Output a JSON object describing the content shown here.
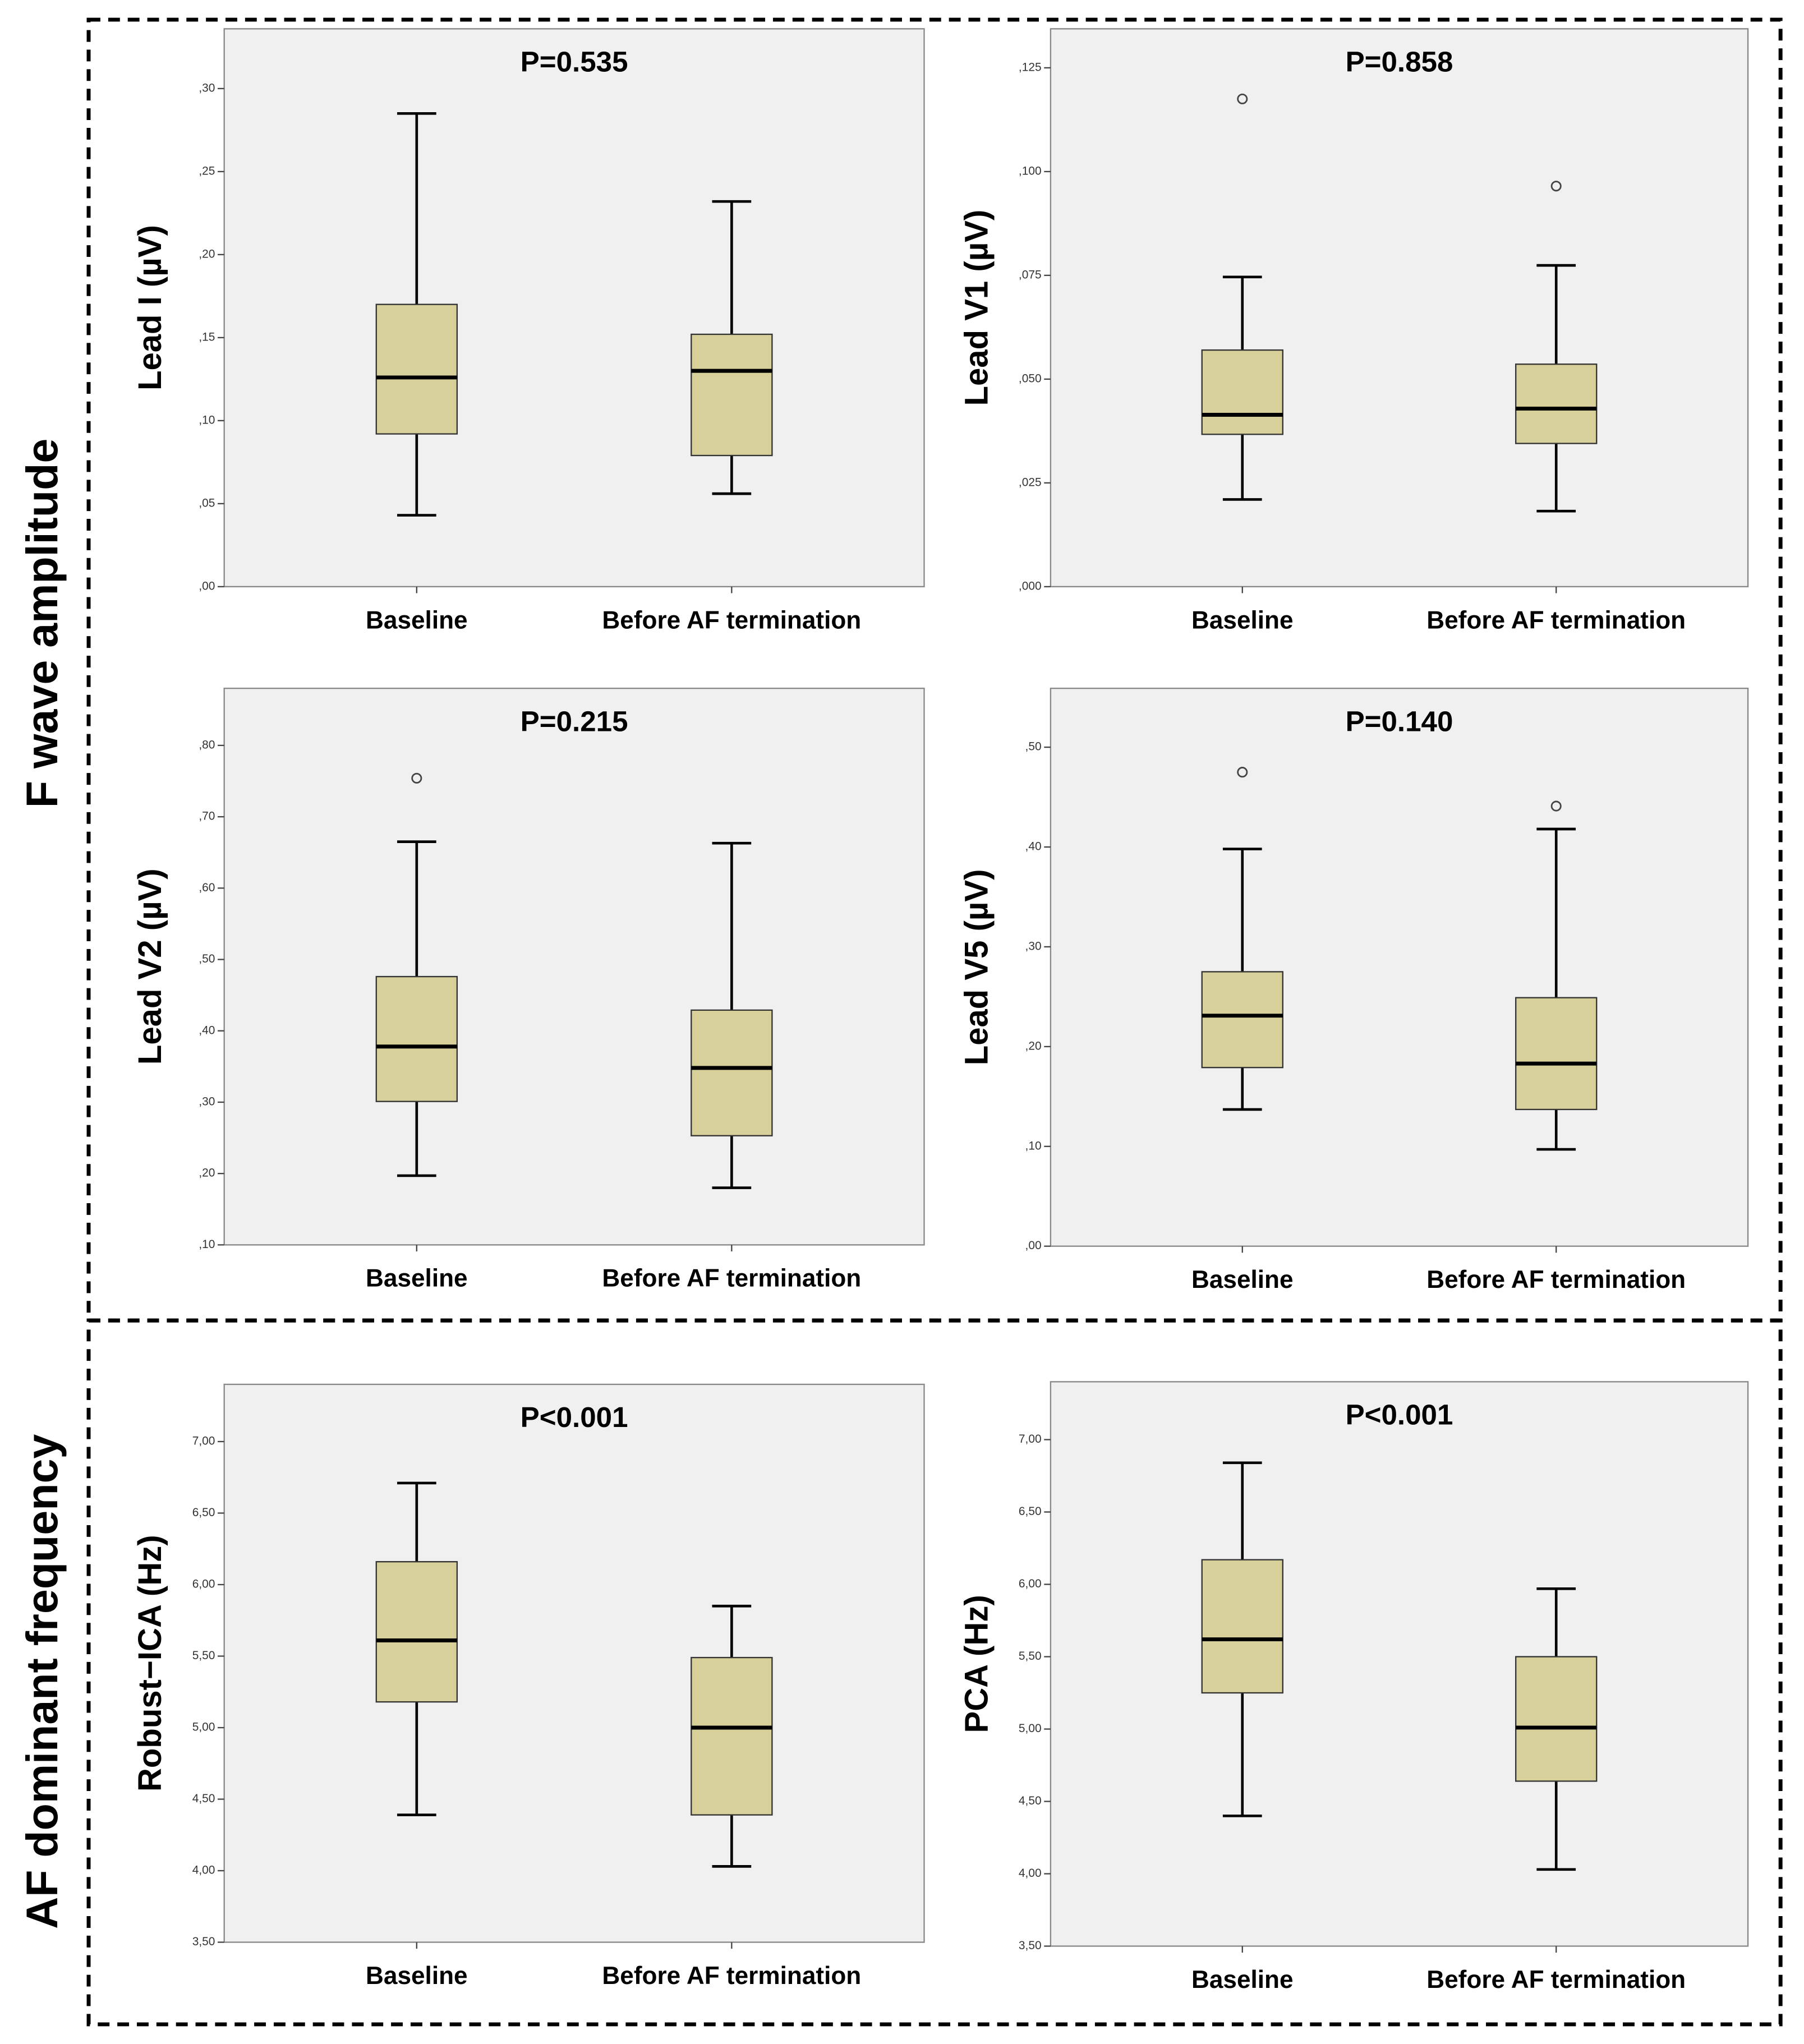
{
  "groups": [
    "F wave amplitude",
    "AF dominant frequency"
  ],
  "chart_data": [
    {
      "type": "box",
      "title": "P=0.535",
      "ylabel": "Lead I (µV)",
      "categories": [
        "Baseline",
        "Before AF termination"
      ],
      "color": "#d8d09a",
      "ylim": [
        0,
        0.336
      ],
      "yticks": [
        {
          "value": 0,
          "label": ",00"
        },
        {
          "value": 0.05,
          "label": ",05"
        },
        {
          "value": 0.1,
          "label": ",10"
        },
        {
          "value": 0.15,
          "label": ",15"
        },
        {
          "value": 0.2,
          "label": ",20"
        },
        {
          "value": 0.25,
          "label": ",25"
        },
        {
          "value": 0.3,
          "label": ",30"
        }
      ],
      "boxes": [
        {
          "min": 0.043,
          "q1": 0.092,
          "median": 0.126,
          "q3": 0.17,
          "max": 0.285,
          "outliers": []
        },
        {
          "min": 0.056,
          "q1": 0.079,
          "median": 0.13,
          "q3": 0.152,
          "max": 0.232,
          "outliers": []
        }
      ]
    },
    {
      "type": "box",
      "title": "P=0.858",
      "ylabel": "Lead V1 (µV)",
      "categories": [
        "Baseline",
        "Before AF termination"
      ],
      "color": "#d8d09a",
      "ylim": [
        0,
        0.1344
      ],
      "yticks": [
        {
          "value": 0,
          "label": ",000"
        },
        {
          "value": 0.025,
          "label": ",025"
        },
        {
          "value": 0.05,
          "label": ",050"
        },
        {
          "value": 0.075,
          "label": ",075"
        },
        {
          "value": 0.1,
          "label": ",100"
        },
        {
          "value": 0.125,
          "label": ",125"
        }
      ],
      "boxes": [
        {
          "min": 0.021,
          "q1": 0.0367,
          "median": 0.0414,
          "q3": 0.057,
          "max": 0.0746,
          "outliers": [
            0.1175
          ]
        },
        {
          "min": 0.0182,
          "q1": 0.0345,
          "median": 0.0429,
          "q3": 0.0536,
          "max": 0.0774,
          "outliers": [
            0.0965
          ]
        }
      ]
    },
    {
      "type": "box",
      "title": "P=0.215",
      "ylabel": "Lead V2 (µV)",
      "categories": [
        "Baseline",
        "Before AF termination"
      ],
      "color": "#d8d09a",
      "ylim": [
        0.1,
        0.88
      ],
      "yticks": [
        {
          "value": 0.1,
          "label": ",10"
        },
        {
          "value": 0.2,
          "label": ",20"
        },
        {
          "value": 0.3,
          "label": ",30"
        },
        {
          "value": 0.4,
          "label": ",40"
        },
        {
          "value": 0.5,
          "label": ",50"
        },
        {
          "value": 0.6,
          "label": ",60"
        },
        {
          "value": 0.7,
          "label": ",70"
        },
        {
          "value": 0.8,
          "label": ",80"
        }
      ],
      "boxes": [
        {
          "min": 0.197,
          "q1": 0.301,
          "median": 0.378,
          "q3": 0.476,
          "max": 0.665,
          "outliers": [
            0.754
          ]
        },
        {
          "min": 0.18,
          "q1": 0.253,
          "median": 0.348,
          "q3": 0.429,
          "max": 0.663,
          "outliers": []
        }
      ]
    },
    {
      "type": "box",
      "title": "P=0.140",
      "ylabel": "Lead V5 (µV)",
      "categories": [
        "Baseline",
        "Before AF termination"
      ],
      "color": "#d8d09a",
      "ylim": [
        0,
        0.559
      ],
      "yticks": [
        {
          "value": 0,
          "label": ",00"
        },
        {
          "value": 0.1,
          "label": ",10"
        },
        {
          "value": 0.2,
          "label": ",20"
        },
        {
          "value": 0.3,
          "label": ",30"
        },
        {
          "value": 0.4,
          "label": ",40"
        },
        {
          "value": 0.5,
          "label": ",50"
        }
      ],
      "boxes": [
        {
          "min": 0.137,
          "q1": 0.179,
          "median": 0.231,
          "q3": 0.275,
          "max": 0.398,
          "outliers": [
            0.475
          ]
        },
        {
          "min": 0.097,
          "q1": 0.137,
          "median": 0.183,
          "q3": 0.249,
          "max": 0.418,
          "outliers": [
            0.441
          ]
        }
      ]
    },
    {
      "type": "box",
      "title": "P<0.001",
      "ylabel": "Robust−ICA (Hz)",
      "categories": [
        "Baseline",
        "Before AF termination"
      ],
      "color": "#d8d09a",
      "ylim": [
        3.5,
        7.4
      ],
      "yticks": [
        {
          "value": 3.5,
          "label": "3,50"
        },
        {
          "value": 4,
          "label": "4,00"
        },
        {
          "value": 4.5,
          "label": "4,50"
        },
        {
          "value": 5,
          "label": "5,00"
        },
        {
          "value": 5.5,
          "label": "5,50"
        },
        {
          "value": 6,
          "label": "6,00"
        },
        {
          "value": 6.5,
          "label": "6,50"
        },
        {
          "value": 7,
          "label": "7,00"
        }
      ],
      "boxes": [
        {
          "min": 4.39,
          "q1": 5.18,
          "median": 5.61,
          "q3": 6.16,
          "max": 6.71,
          "outliers": []
        },
        {
          "min": 4.03,
          "q1": 4.39,
          "median": 5.0,
          "q3": 5.49,
          "max": 5.85,
          "outliers": []
        }
      ]
    },
    {
      "type": "box",
      "title": "P<0.001",
      "ylabel": "PCA (Hz)",
      "categories": [
        "Baseline",
        "Before AF termination"
      ],
      "color": "#d8d09a",
      "ylim": [
        3.5,
        7.4
      ],
      "yticks": [
        {
          "value": 3.5,
          "label": "3,50"
        },
        {
          "value": 4,
          "label": "4,00"
        },
        {
          "value": 4.5,
          "label": "4,50"
        },
        {
          "value": 5,
          "label": "5,00"
        },
        {
          "value": 5.5,
          "label": "5,50"
        },
        {
          "value": 6,
          "label": "6,00"
        },
        {
          "value": 6.5,
          "label": "6,50"
        },
        {
          "value": 7,
          "label": "7,00"
        }
      ],
      "boxes": [
        {
          "min": 4.4,
          "q1": 5.25,
          "median": 5.62,
          "q3": 6.17,
          "max": 6.84,
          "outliers": []
        },
        {
          "min": 4.03,
          "q1": 4.64,
          "median": 5.01,
          "q3": 5.5,
          "max": 5.97,
          "outliers": []
        }
      ]
    }
  ]
}
